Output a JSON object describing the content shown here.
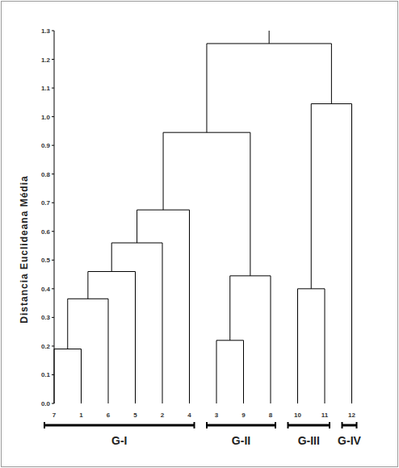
{
  "chart_data": {
    "type": "dendrogram",
    "y_label": "Distancia Euclideana Média",
    "ylim": [
      0,
      1.3
    ],
    "yticks": [
      {
        "value": 0,
        "label": "0.0"
      },
      0.1,
      0.2,
      0.3,
      0.4,
      0.5,
      0.6,
      0.7,
      0.8,
      0.9,
      {
        "value": 1,
        "label": "1.0"
      },
      1.1,
      1.2,
      1.3
    ],
    "leaves": [
      "7",
      "1",
      "6",
      "5",
      "2",
      "4",
      "3",
      "9",
      "8",
      "10",
      "11",
      "12"
    ],
    "merges": [
      {
        "children": [
          0,
          1
        ],
        "height": 0.19
      },
      {
        "children": [
          12,
          2
        ],
        "height": 0.365
      },
      {
        "children": [
          13,
          3
        ],
        "height": 0.46
      },
      {
        "children": [
          14,
          4
        ],
        "height": 0.56
      },
      {
        "children": [
          15,
          5
        ],
        "height": 0.675
      },
      {
        "children": [
          6,
          7
        ],
        "height": 0.22
      },
      {
        "children": [
          17,
          8
        ],
        "height": 0.445
      },
      {
        "children": [
          16,
          18
        ],
        "height": 0.945
      },
      {
        "children": [
          9,
          10
        ],
        "height": 0.4
      },
      {
        "children": [
          20,
          11
        ],
        "height": 1.045
      },
      {
        "children": [
          19,
          21
        ],
        "height": 1.255
      }
    ],
    "groups": [
      {
        "label": "G-I",
        "first": 0,
        "last": 5
      },
      {
        "label": "G-II",
        "first": 6,
        "last": 8
      },
      {
        "label": "G-III",
        "first": 9,
        "last": 10
      },
      {
        "label": "G-IV",
        "first": 11,
        "last": 11
      }
    ],
    "color": "#000000"
  }
}
